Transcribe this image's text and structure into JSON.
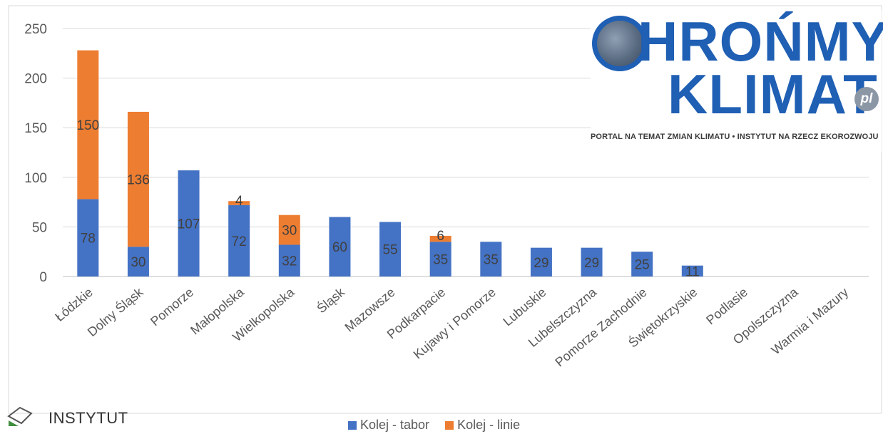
{
  "chart_data": {
    "type": "bar",
    "stacked": true,
    "categories": [
      "Łódzkie",
      "Dolny Śląsk",
      "Pomorze",
      "Małopolska",
      "Wielkopolska",
      "Śląsk",
      "Mazowsze",
      "Podkarpacie",
      "Kujawy i Pomorze",
      "Lubuskie",
      "Lubelszczyzna",
      "Pomorze Zachodnie",
      "Świętokrzyskie",
      "Podlasie",
      "Opolszczyzna",
      "Warmia i Mazury"
    ],
    "series": [
      {
        "name": "Kolej - tabor",
        "color": "#4472c4",
        "values": [
          78,
          30,
          107,
          72,
          32,
          60,
          55,
          35,
          35,
          29,
          29,
          25,
          11,
          0,
          0,
          0
        ]
      },
      {
        "name": "Kolej - linie",
        "color": "#ed7d31",
        "values": [
          150,
          136,
          0,
          4,
          30,
          0,
          0,
          6,
          0,
          0,
          0,
          0,
          0,
          0,
          0,
          0
        ]
      }
    ],
    "ylim": [
      0,
      250
    ],
    "yticks": [
      "0",
      "50",
      "100",
      "150",
      "200",
      "250"
    ],
    "grid": true,
    "legend_position": "bottom"
  },
  "logo": {
    "line1": "HROŃMY",
    "line2": "KLIMAT",
    "suffix": "pl",
    "tagline": "PORTAL NA TEMAT ZMIAN KLIMATU • INSTYTUT NA RZECZ EKOROZWOJU",
    "icon": "globe-icon"
  },
  "institute": {
    "label": "INSTYTUT",
    "icon": "institute-logo-icon"
  }
}
